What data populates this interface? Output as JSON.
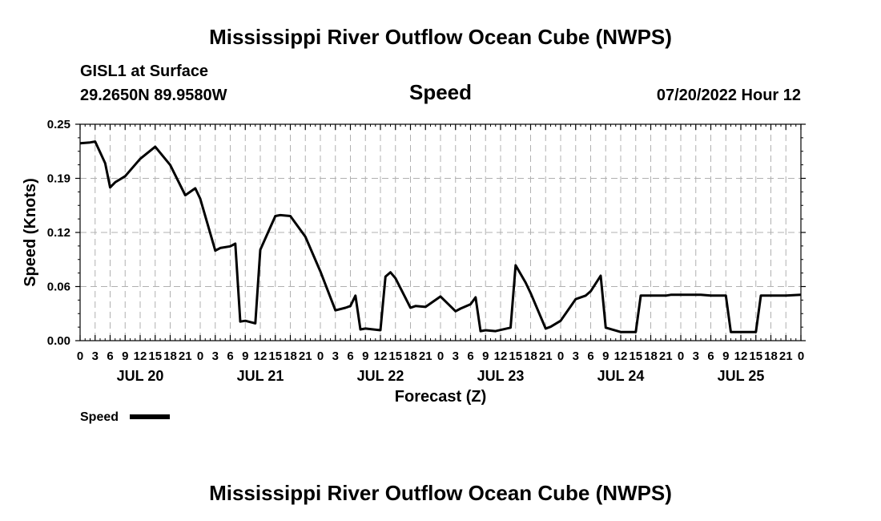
{
  "page": {
    "title": "Mississippi River Outflow Ocean Cube (NWPS)",
    "station": "GISL1 at Surface",
    "coords": "29.2650N  89.9580W",
    "variable": "Speed",
    "run": "07/20/2022 Hour 12",
    "footer_title": "Mississippi River Outflow Ocean Cube (NWPS)"
  },
  "chart_data": {
    "type": "line",
    "title": "Speed",
    "xlabel": "Forecast (Z)",
    "ylabel": "Speed (Knots)",
    "yticks": [
      "0.00",
      "0.06",
      "0.12",
      "0.19",
      "0.25"
    ],
    "ylim": [
      0,
      0.25
    ],
    "xlim_hours": [
      0,
      144
    ],
    "hour_tick_labels": [
      "0",
      "3",
      "6",
      "9",
      "12",
      "15",
      "18",
      "21",
      "0",
      "3",
      "6",
      "9",
      "12",
      "15",
      "18",
      "21",
      "0",
      "3",
      "6",
      "9",
      "12",
      "15",
      "18",
      "21",
      "0",
      "3",
      "6",
      "9",
      "12",
      "15",
      "18",
      "21",
      "0",
      "3",
      "6",
      "9",
      "12",
      "15",
      "18",
      "21",
      "0",
      "3",
      "6",
      "9",
      "12",
      "15",
      "18",
      "21",
      "0"
    ],
    "day_labels": [
      "JUL 20",
      "JUL 21",
      "JUL 22",
      "JUL 23",
      "JUL 24",
      "JUL 25"
    ],
    "grid": true,
    "legend_position": "bottom-left",
    "series": [
      {
        "name": "Speed",
        "color": "#000000",
        "points": [
          [
            0,
            0.228
          ],
          [
            2,
            0.229
          ],
          [
            3,
            0.23
          ],
          [
            5,
            0.205
          ],
          [
            6,
            0.177
          ],
          [
            7,
            0.183
          ],
          [
            9,
            0.19
          ],
          [
            12,
            0.21
          ],
          [
            15,
            0.224
          ],
          [
            18,
            0.203
          ],
          [
            21,
            0.168
          ],
          [
            23,
            0.176
          ],
          [
            24,
            0.164
          ],
          [
            27,
            0.104
          ],
          [
            28,
            0.107
          ],
          [
            30,
            0.109
          ],
          [
            31,
            0.112
          ],
          [
            32,
            0.022
          ],
          [
            33,
            0.023
          ],
          [
            35,
            0.02
          ],
          [
            36,
            0.105
          ],
          [
            39,
            0.144
          ],
          [
            40,
            0.145
          ],
          [
            42,
            0.144
          ],
          [
            45,
            0.12
          ],
          [
            48,
            0.08
          ],
          [
            51,
            0.035
          ],
          [
            53,
            0.038
          ],
          [
            54,
            0.04
          ],
          [
            55,
            0.052
          ],
          [
            56,
            0.013
          ],
          [
            57,
            0.014
          ],
          [
            60,
            0.012
          ],
          [
            61,
            0.074
          ],
          [
            62,
            0.079
          ],
          [
            63,
            0.072
          ],
          [
            66,
            0.038
          ],
          [
            67,
            0.04
          ],
          [
            69,
            0.039
          ],
          [
            72,
            0.051
          ],
          [
            75,
            0.034
          ],
          [
            76,
            0.037
          ],
          [
            78,
            0.042
          ],
          [
            79,
            0.05
          ],
          [
            80,
            0.011
          ],
          [
            81,
            0.012
          ],
          [
            83,
            0.011
          ],
          [
            86,
            0.015
          ],
          [
            87,
            0.087
          ],
          [
            89,
            0.067
          ],
          [
            90,
            0.055
          ],
          [
            93,
            0.014
          ],
          [
            94,
            0.016
          ],
          [
            96,
            0.023
          ],
          [
            99,
            0.048
          ],
          [
            101,
            0.052
          ],
          [
            102,
            0.057
          ],
          [
            104,
            0.075
          ],
          [
            105,
            0.015
          ],
          [
            108,
            0.01
          ],
          [
            111,
            0.01
          ],
          [
            112,
            0.052
          ],
          [
            117,
            0.052
          ],
          [
            118,
            0.053
          ],
          [
            124,
            0.053
          ],
          [
            126,
            0.052
          ],
          [
            129,
            0.052
          ],
          [
            130,
            0.01
          ],
          [
            135,
            0.01
          ],
          [
            136,
            0.052
          ],
          [
            141,
            0.052
          ],
          [
            144,
            0.053
          ]
        ]
      }
    ]
  }
}
